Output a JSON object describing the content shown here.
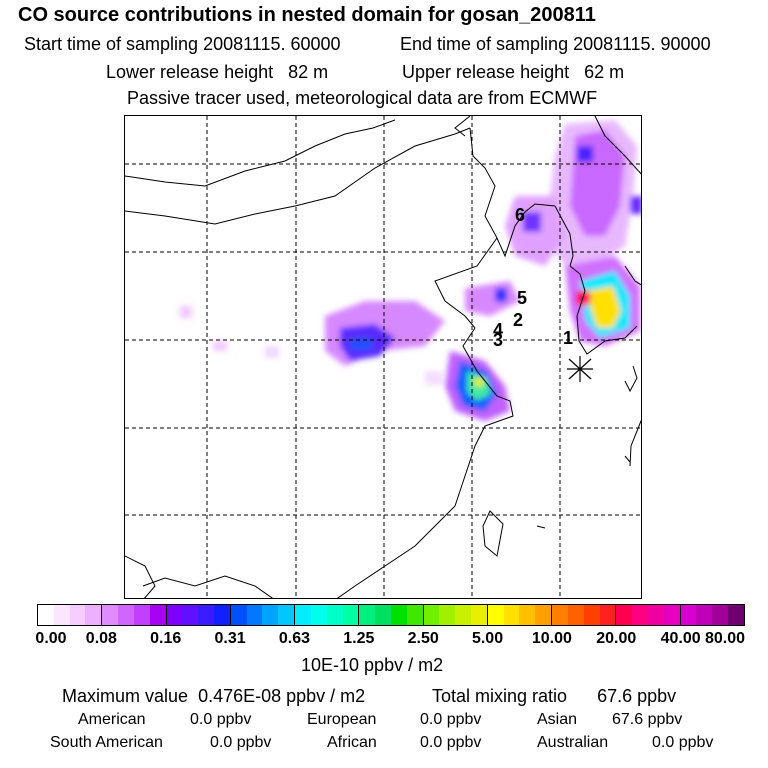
{
  "header": {
    "title": "CO  source contributions in nested domain for gosan_200811",
    "start_label": "Start time of sampling",
    "start_value": "20081115. 60000",
    "end_label": "End time of sampling",
    "end_value": "20081115. 90000",
    "lower_label": "Lower release height",
    "lower_value": "82 m",
    "upper_label": "Upper release height",
    "upper_value": "62 m",
    "info": "Passive tracer used, meteorological data are from ECMWF"
  },
  "map": {
    "markers": [
      {
        "label": "1"
      },
      {
        "label": "2"
      },
      {
        "label": "3"
      },
      {
        "label": "4"
      },
      {
        "label": "5"
      },
      {
        "label": "6"
      }
    ],
    "receptor_icon": "star-receptor-icon"
  },
  "chart_data": {
    "type": "heatmap",
    "title": "CO  source contributions in nested domain for gosan_200811",
    "colorbar_unit": "10E-10 ppbv / m2",
    "colorbar_ticks": [
      "0.00",
      "0.08",
      "0.16",
      "0.31",
      "0.63",
      "1.25",
      "2.50",
      "5.00",
      "10.00",
      "20.00",
      "40.00",
      "80.00"
    ],
    "colorbar_colors": [
      [
        "#ffffff",
        "#fbe6ff",
        "#f4ccff",
        "#ecb0ff"
      ],
      [
        "#e08cff",
        "#d166ff",
        "#c040ff",
        "#a800f0"
      ],
      [
        "#8000ff",
        "#6010ff",
        "#3a1cff",
        "#1020ff"
      ],
      [
        "#0050ff",
        "#0078ff",
        "#00a4ff",
        "#00c8ff"
      ],
      [
        "#00ecff",
        "#00ffec",
        "#00ffc8",
        "#00ffa4"
      ],
      [
        "#00f080",
        "#00e060",
        "#00e000",
        "#40e800"
      ],
      [
        "#70f000",
        "#a0f000",
        "#c8f000",
        "#e8f000"
      ],
      [
        "#ffff00",
        "#ffe000",
        "#ffc000",
        "#ffa000"
      ],
      [
        "#ff8000",
        "#ff6000",
        "#ff4000",
        "#ff2020"
      ],
      [
        "#ff0050",
        "#ff0080",
        "#f000a0",
        "#e800c0"
      ],
      [
        "#d800d0",
        "#c000b8",
        "#a00098",
        "#700070"
      ]
    ],
    "max_label": "Maximum value",
    "max_value": "0.476E-08 ppbv / m2",
    "total_label": "Total mixing ratio",
    "total_value": "67.6 ppbv",
    "regions": [
      {
        "name": "American",
        "value": "0.0 ppbv"
      },
      {
        "name": "European",
        "value": "0.0 ppbv"
      },
      {
        "name": "Asian",
        "value": "67.6 ppbv"
      },
      {
        "name": "South American",
        "value": "0.0 ppbv"
      },
      {
        "name": "African",
        "value": "0.0 ppbv"
      },
      {
        "name": "Australian",
        "value": "0.0 ppbv"
      }
    ]
  }
}
